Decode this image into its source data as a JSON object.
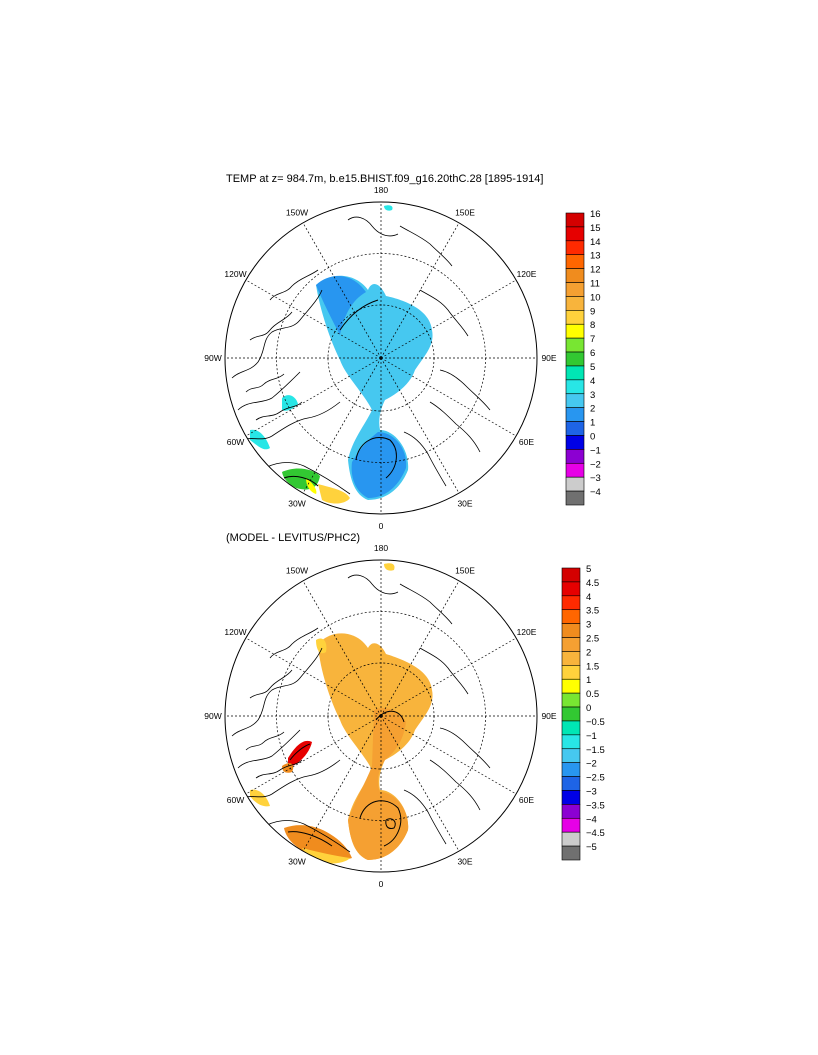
{
  "chart_data": [
    {
      "type": "heatmap",
      "projection": "north-polar-stereographic",
      "title": "TEMP at z= 984.7m, b.e15.BHIST.f09_g16.20thC.28 [1895-1914]",
      "longitude_labels": [
        "180",
        "150E",
        "120E",
        "90E",
        "60E",
        "30E",
        "0",
        "30W",
        "60W",
        "90W",
        "120W",
        "150W"
      ],
      "colorbar": {
        "levels": [
          "16",
          "15",
          "14",
          "13",
          "12",
          "11",
          "10",
          "9",
          "8",
          "7",
          "6",
          "5",
          "4",
          "3",
          "2",
          "1",
          "0",
          "−1",
          "−2",
          "−3",
          "−4"
        ],
        "colors": [
          "#d40000",
          "#e60000",
          "#ff2a00",
          "#ff6600",
          "#f08c1e",
          "#f5a032",
          "#f8b43c",
          "#ffd23c",
          "#ffff00",
          "#78e632",
          "#32c832",
          "#00e6b4",
          "#28e6e6",
          "#46c8f0",
          "#2896f0",
          "#1e64e6",
          "#0000e6",
          "#8c00d2",
          "#e600e6",
          "#cccccc",
          "#707070"
        ]
      },
      "dominant_range": "1 to 2",
      "features": [
        "Arctic basin mostly 1 to 3",
        "Nordic seas 1 to 2",
        "Labrador Sea 3 to 5",
        "North Atlantic 6 to 9"
      ]
    },
    {
      "type": "heatmap",
      "projection": "north-polar-stereographic",
      "title": "(MODEL - LEVITUS/PHC2)",
      "longitude_labels": [
        "180",
        "150E",
        "120E",
        "90E",
        "60E",
        "30E",
        "0",
        "30W",
        "60W",
        "90W",
        "120W",
        "150W"
      ],
      "colorbar": {
        "levels": [
          "5",
          "4.5",
          "4",
          "3.5",
          "3",
          "2.5",
          "2",
          "1.5",
          "1",
          "0.5",
          "0",
          "−0.5",
          "−1",
          "−1.5",
          "−2",
          "−2.5",
          "−3",
          "−3.5",
          "−4",
          "−4.5",
          "−5"
        ],
        "colors": [
          "#d40000",
          "#e60000",
          "#ff2a00",
          "#ff6600",
          "#f08c1e",
          "#f5a032",
          "#f8b43c",
          "#ffd23c",
          "#ffff00",
          "#78e632",
          "#32c832",
          "#00e6b4",
          "#28e6e6",
          "#46c8f0",
          "#2896f0",
          "#1e64e6",
          "#0000e6",
          "#8c00d2",
          "#e600e6",
          "#cccccc",
          "#707070"
        ]
      },
      "dominant_range": "2 to 2.5",
      "features": [
        "Arctic basin 2 to 2.5",
        "Nordic seas 2.5 to 3",
        "Baffin Bay 4 to 5",
        "Labrador Sea 1.5 to 2"
      ]
    }
  ]
}
